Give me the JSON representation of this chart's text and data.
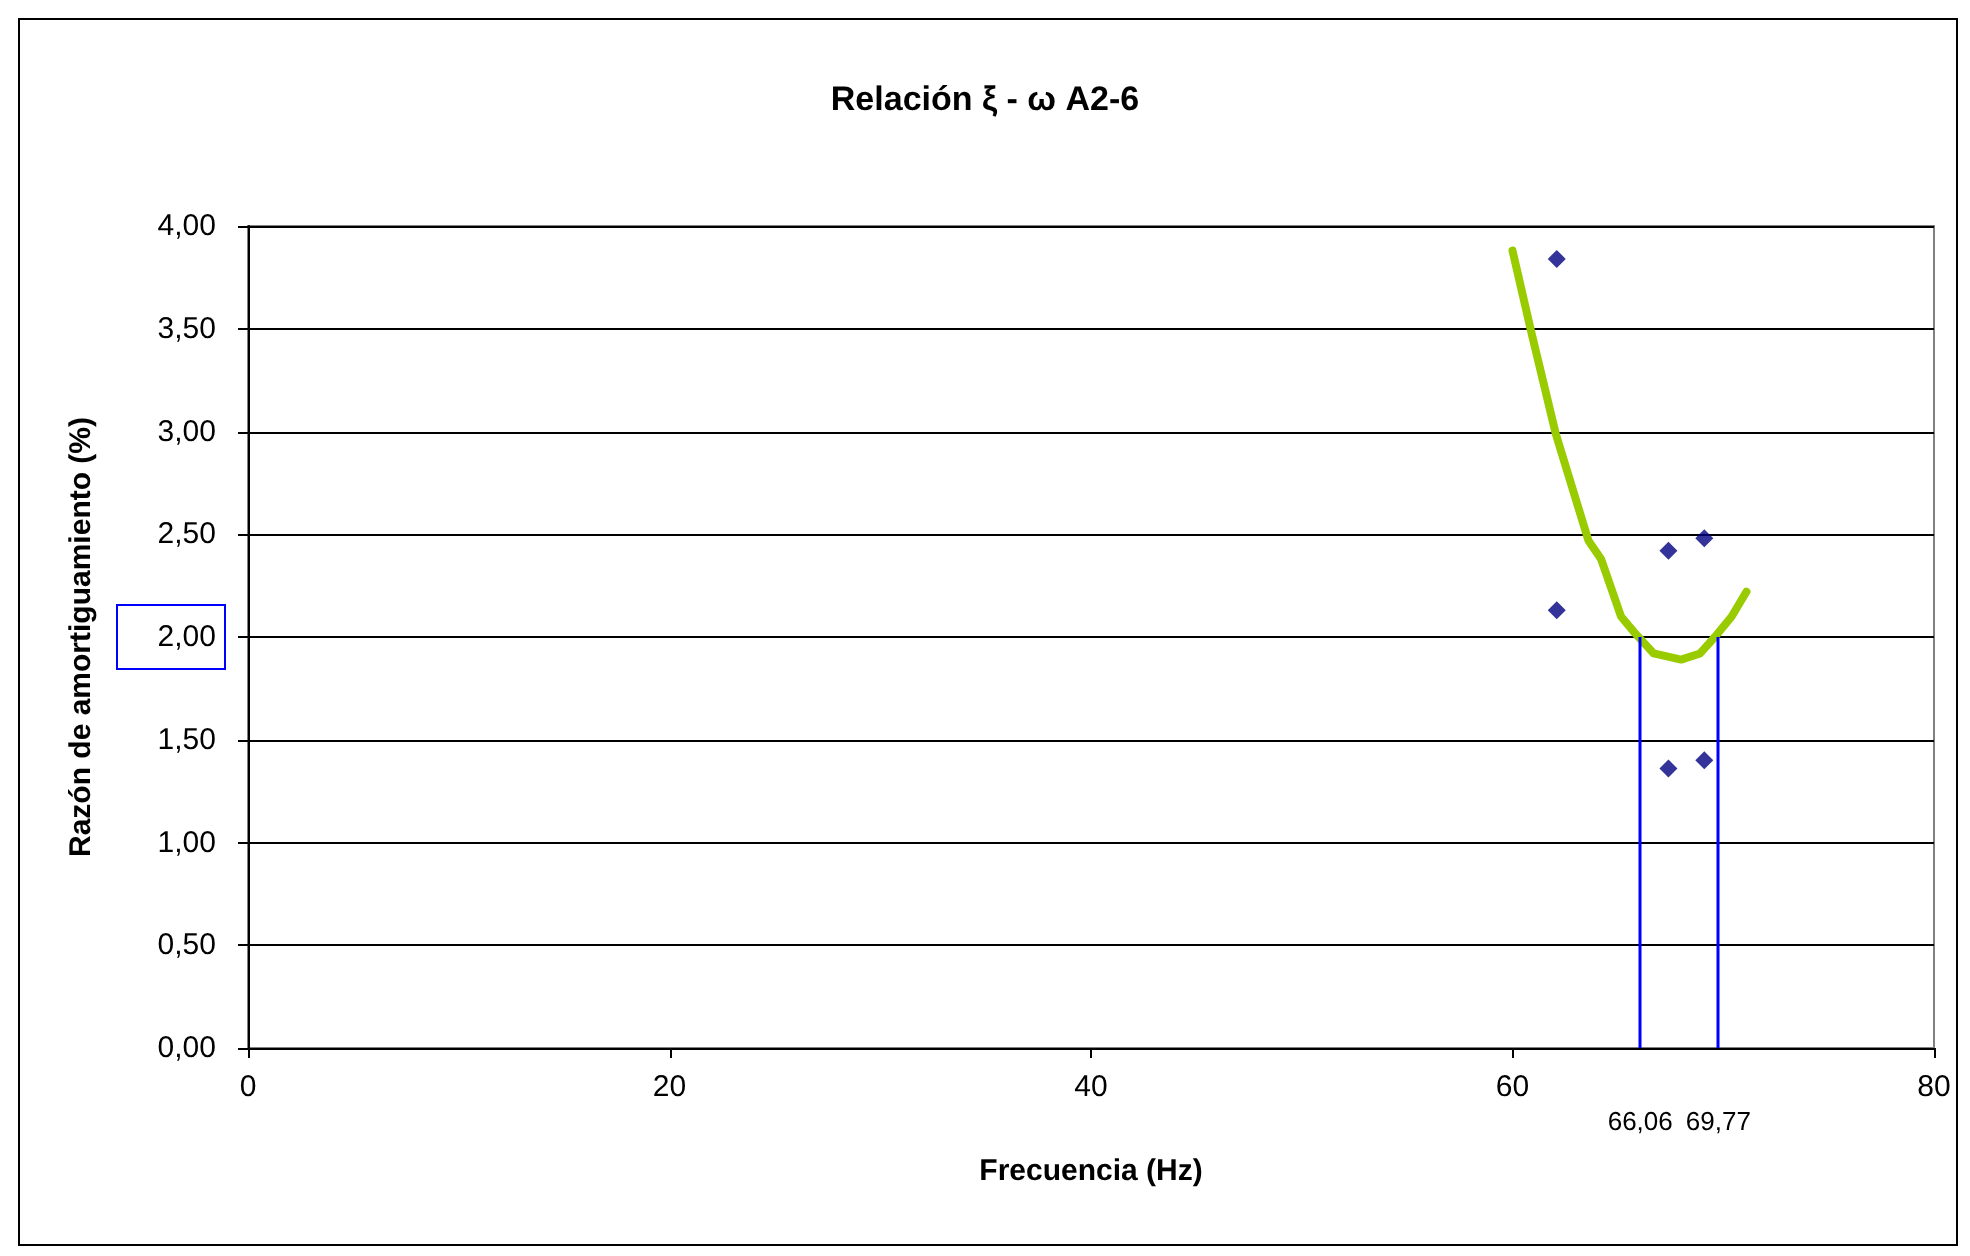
{
  "chart_data": {
    "type": "scatter",
    "title": "Relación ξ - ω A2-6",
    "xlabel": "Frecuencia (Hz)",
    "ylabel": "Razón de amortiguamiento (%)",
    "series": [
      {
        "color": "#000080",
        "marker": "diamond",
        "x": [
          62.1,
          67.4,
          69.1,
          62.1,
          67.4,
          69.1
        ],
        "values": [
          3.84,
          2.42,
          2.48,
          2.13,
          1.36,
          1.4
        ]
      },
      {
        "type": "line",
        "color": "#99cc00",
        "marker": "none",
        "x": [
          60.0,
          60.9,
          62.05,
          63.6,
          64.2,
          65.15,
          65.8,
          66.7,
          68.0,
          68.9,
          69.6,
          70.4,
          71.1
        ],
        "values": [
          3.88,
          3.48,
          2.99,
          2.47,
          2.38,
          2.1,
          2.02,
          1.92,
          1.89,
          1.92,
          2.0,
          2.1,
          2.22
        ]
      }
    ],
    "xlim": [
      0,
      80
    ],
    "xticks": [
      0,
      20,
      40,
      60,
      80
    ],
    "ylim": [
      0,
      4
    ],
    "yticks": [
      {
        "value": 0,
        "label": "0,00"
      },
      {
        "value": 0.5,
        "label": "0,50"
      },
      {
        "value": 1,
        "label": "1,00"
      },
      {
        "value": 1.5,
        "label": "1,50"
      },
      {
        "value": 2,
        "label": "2,00"
      },
      {
        "value": 2.5,
        "label": "2,50"
      },
      {
        "value": 3,
        "label": "3,00"
      },
      {
        "value": 3.5,
        "label": "3,50"
      },
      {
        "value": 4,
        "label": "4,00"
      }
    ],
    "ref_lines": [
      {
        "axis": "x",
        "value": 66.06,
        "label": "66,06",
        "color": "#0000ff"
      },
      {
        "axis": "x",
        "value": 69.77,
        "label": "69,77",
        "color": "#0000ff"
      }
    ],
    "grid": "y"
  }
}
